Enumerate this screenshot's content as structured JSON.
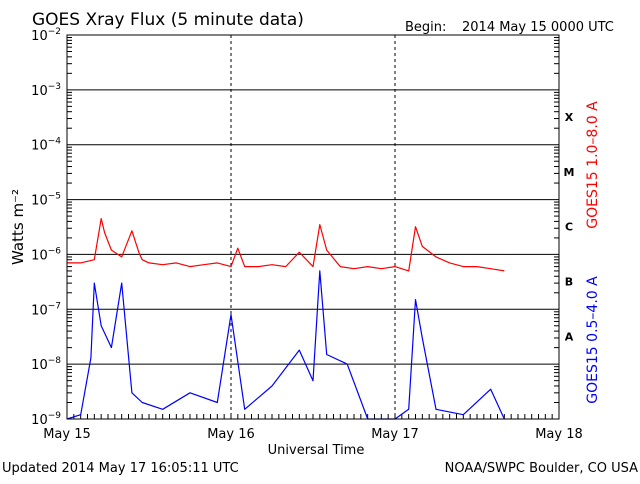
{
  "header": {
    "title": "GOES Xray Flux (5 minute data)",
    "begin_label": "Begin:",
    "begin_value": "2014 May 15 0000 UTC"
  },
  "footer": {
    "updated": "Updated 2014 May 17 16:05:11 UTC",
    "credit": "NOAA/SWPC Boulder, CO USA"
  },
  "colors": {
    "long_channel": "#ff0000",
    "short_channel": "#0000ff",
    "background": "#ffffff",
    "axes": "#000000"
  },
  "chart_data": {
    "type": "line",
    "title": "GOES Xray Flux (5 minute data)",
    "xlabel": "Universal Time",
    "ylabel": "Watts m⁻²",
    "yscale": "log",
    "ylim": [
      1e-09,
      0.01
    ],
    "xlim": [
      "2014-05-15 00:00",
      "2014-05-18 00:00"
    ],
    "x_tick_labels": [
      "May 15",
      "May 16",
      "May 17",
      "May 18"
    ],
    "y_ticks": [
      {
        "base": "10",
        "exp": "−2",
        "value": 0.01
      },
      {
        "base": "10",
        "exp": "−3",
        "value": 0.001
      },
      {
        "base": "10",
        "exp": "−4",
        "value": 0.0001
      },
      {
        "base": "10",
        "exp": "−5",
        "value": 1e-05
      },
      {
        "base": "10",
        "exp": "−6",
        "value": 1e-06
      },
      {
        "base": "10",
        "exp": "−7",
        "value": 1e-07
      },
      {
        "base": "10",
        "exp": "−8",
        "value": 1e-08
      },
      {
        "base": "10",
        "exp": "−9",
        "value": 1e-09
      }
    ],
    "flare_classes": [
      {
        "label": "X",
        "value": 0.00032
      },
      {
        "label": "M",
        "value": 3.2e-05
      },
      {
        "label": "C",
        "value": 3.2e-06
      },
      {
        "label": "B",
        "value": 3.2e-07
      },
      {
        "label": "A",
        "value": 3.2e-08
      }
    ],
    "grid": true,
    "legend_position": "right",
    "series": [
      {
        "name": "GOES15 1.0–8.0 A",
        "color": "#ff0000",
        "x": [
          "2014-05-15 00:00",
          "2014-05-15 02:00",
          "2014-05-15 04:00",
          "2014-05-15 05:00",
          "2014-05-15 05:30",
          "2014-05-15 06:30",
          "2014-05-15 08:00",
          "2014-05-15 09:30",
          "2014-05-15 10:30",
          "2014-05-15 11:00",
          "2014-05-15 12:00",
          "2014-05-15 14:00",
          "2014-05-15 16:00",
          "2014-05-15 18:00",
          "2014-05-15 20:00",
          "2014-05-15 22:00",
          "2014-05-16 00:00",
          "2014-05-16 01:00",
          "2014-05-16 02:00",
          "2014-05-16 04:00",
          "2014-05-16 06:00",
          "2014-05-16 08:00",
          "2014-05-16 10:00",
          "2014-05-16 12:00",
          "2014-05-16 13:00",
          "2014-05-16 14:00",
          "2014-05-16 16:00",
          "2014-05-16 18:00",
          "2014-05-16 20:00",
          "2014-05-16 22:00",
          "2014-05-17 00:00",
          "2014-05-17 02:00",
          "2014-05-17 03:00",
          "2014-05-17 04:00",
          "2014-05-17 06:00",
          "2014-05-17 08:00",
          "2014-05-17 10:00",
          "2014-05-17 12:00",
          "2014-05-17 14:00",
          "2014-05-17 16:00"
        ],
        "values": [
          7e-07,
          7e-07,
          8e-07,
          4.5e-06,
          2.5e-06,
          1.2e-06,
          9e-07,
          2.7e-06,
          1.1e-06,
          8e-07,
          7e-07,
          6.5e-07,
          7e-07,
          6e-07,
          6.5e-07,
          7e-07,
          6e-07,
          1.3e-06,
          6e-07,
          6e-07,
          6.5e-07,
          6e-07,
          1.1e-06,
          6e-07,
          3.5e-06,
          1.2e-06,
          6e-07,
          5.5e-07,
          6e-07,
          5.5e-07,
          6e-07,
          5e-07,
          3.2e-06,
          1.4e-06,
          9e-07,
          7e-07,
          6e-07,
          6e-07,
          5.5e-07,
          5e-07
        ]
      },
      {
        "name": "GOES15 0.5–4.0 A",
        "color": "#0000ff",
        "x": [
          "2014-05-15 00:00",
          "2014-05-15 02:00",
          "2014-05-15 03:30",
          "2014-05-15 04:00",
          "2014-05-15 05:00",
          "2014-05-15 06:30",
          "2014-05-15 08:00",
          "2014-05-15 09:30",
          "2014-05-15 11:00",
          "2014-05-15 14:00",
          "2014-05-15 18:00",
          "2014-05-15 22:00",
          "2014-05-16 00:00",
          "2014-05-16 02:00",
          "2014-05-16 06:00",
          "2014-05-16 10:00",
          "2014-05-16 12:00",
          "2014-05-16 13:00",
          "2014-05-16 14:00",
          "2014-05-16 17:00",
          "2014-05-16 20:00",
          "2014-05-16 22:00",
          "2014-05-17 00:00",
          "2014-05-17 02:00",
          "2014-05-17 03:00",
          "2014-05-17 04:00",
          "2014-05-17 06:00",
          "2014-05-17 10:00",
          "2014-05-17 14:00",
          "2014-05-17 16:00"
        ],
        "values": [
          1e-09,
          1.2e-09,
          1.3e-08,
          3e-07,
          5e-08,
          2e-08,
          3e-07,
          3e-09,
          2e-09,
          1.5e-09,
          3e-09,
          2e-09,
          8e-08,
          1.5e-09,
          4e-09,
          1.8e-08,
          5e-09,
          5e-07,
          1.5e-08,
          1e-08,
          1e-09,
          1e-09,
          1e-09,
          1.5e-09,
          1.5e-07,
          3e-08,
          1.5e-09,
          1.2e-09,
          3.5e-09,
          1e-09
        ]
      }
    ]
  }
}
